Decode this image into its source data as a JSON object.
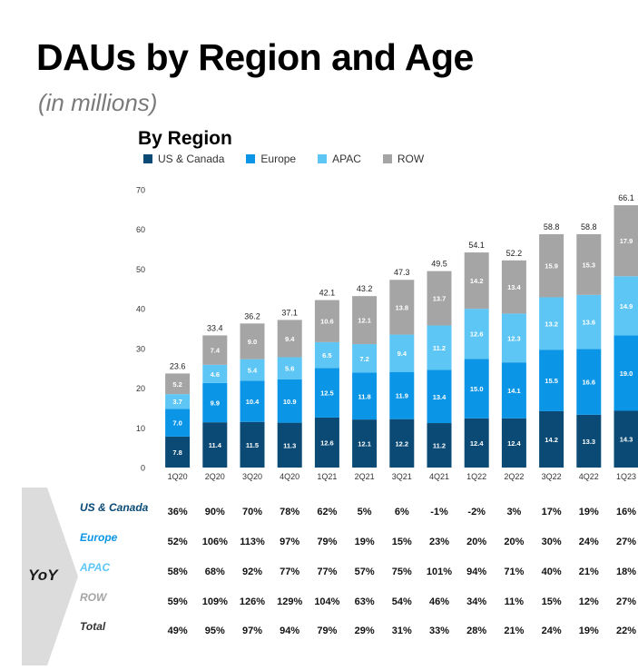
{
  "title": "DAUs by Region and Age",
  "subtitle": "(in millions)",
  "section_title": "By Region",
  "colors": {
    "us_canada": "#0a4a75",
    "europe": "#0b95e6",
    "apac": "#5ec6f5",
    "row": "#a5a5a5"
  },
  "chart_data": {
    "type": "bar",
    "stacked": true,
    "title": "By Region",
    "categories": [
      "1Q20",
      "2Q20",
      "3Q20",
      "4Q20",
      "1Q21",
      "2Q21",
      "3Q21",
      "4Q21",
      "1Q22",
      "2Q22",
      "3Q22",
      "4Q22",
      "1Q23"
    ],
    "series": [
      {
        "name": "US & Canada",
        "color": "#0a4a75",
        "values": [
          7.8,
          11.4,
          11.5,
          11.3,
          12.6,
          12.1,
          12.2,
          11.2,
          12.4,
          12.4,
          14.2,
          13.3,
          14.3
        ]
      },
      {
        "name": "Europe",
        "color": "#0b95e6",
        "values": [
          7.0,
          9.9,
          10.4,
          10.9,
          12.5,
          11.8,
          11.9,
          13.4,
          15.0,
          14.1,
          15.5,
          16.6,
          19.0
        ]
      },
      {
        "name": "APAC",
        "color": "#5ec6f5",
        "values": [
          3.7,
          4.6,
          5.4,
          5.6,
          6.5,
          7.2,
          9.4,
          11.2,
          12.6,
          12.3,
          13.2,
          13.6,
          14.9
        ]
      },
      {
        "name": "ROW",
        "color": "#a5a5a5",
        "values": [
          5.2,
          7.4,
          9.0,
          9.4,
          10.6,
          12.1,
          13.8,
          13.7,
          14.2,
          13.4,
          15.9,
          15.3,
          17.9
        ]
      }
    ],
    "totals": [
      "23.6",
      "33.4",
      "36.2",
      "37.1",
      "42.1",
      "43.2",
      "47.3",
      "49.5",
      "54.1",
      "52.2",
      "58.8",
      "58.8",
      "66.1"
    ],
    "ylim": [
      0,
      70
    ],
    "yticks": [
      "0",
      "10",
      "20",
      "30",
      "40",
      "50",
      "60",
      "70"
    ],
    "legend": "top-left",
    "grid": false
  },
  "yoy": {
    "label": "YoY",
    "rows": [
      {
        "name": "US & Canada",
        "color": "#0a4a75",
        "values": [
          "36%",
          "90%",
          "70%",
          "78%",
          "62%",
          "5%",
          "6%",
          "-1%",
          "-2%",
          "3%",
          "17%",
          "19%",
          "16%"
        ]
      },
      {
        "name": "Europe",
        "color": "#0b95e6",
        "values": [
          "52%",
          "106%",
          "113%",
          "97%",
          "79%",
          "19%",
          "15%",
          "23%",
          "20%",
          "20%",
          "30%",
          "24%",
          "27%"
        ]
      },
      {
        "name": "APAC",
        "color": "#5ec6f5",
        "values": [
          "58%",
          "68%",
          "92%",
          "77%",
          "77%",
          "57%",
          "75%",
          "101%",
          "94%",
          "71%",
          "40%",
          "21%",
          "18%"
        ]
      },
      {
        "name": "ROW",
        "color": "#a5a5a5",
        "values": [
          "59%",
          "109%",
          "126%",
          "129%",
          "104%",
          "63%",
          "54%",
          "46%",
          "34%",
          "11%",
          "15%",
          "12%",
          "27%"
        ]
      },
      {
        "name": "Total",
        "color": "#333333",
        "values": [
          "49%",
          "95%",
          "97%",
          "94%",
          "79%",
          "29%",
          "31%",
          "33%",
          "28%",
          "21%",
          "24%",
          "19%",
          "22%"
        ]
      }
    ]
  }
}
